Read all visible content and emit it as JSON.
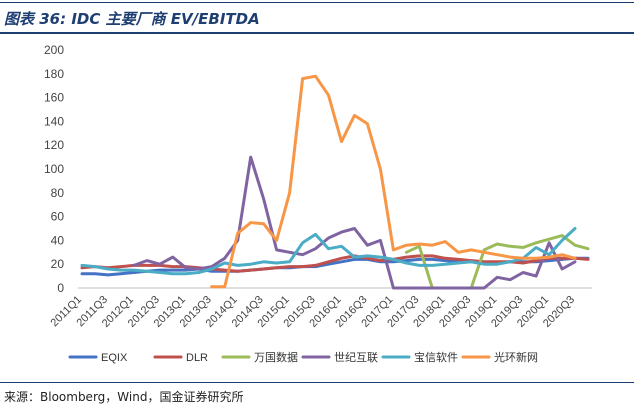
{
  "figure": {
    "title": "图表 36:  IDC 主要厂商 EV/EBITDA",
    "source": "来源：Bloomberg，Wind，国金证券研究所"
  },
  "chart_data": {
    "type": "line",
    "title": "",
    "xlabel": "",
    "ylabel": "",
    "ylim": [
      0,
      200
    ],
    "yticks": [
      0,
      20,
      40,
      60,
      80,
      100,
      120,
      140,
      160,
      180,
      200
    ],
    "grid": false,
    "legend_position": "bottom",
    "x": [
      "2011Q1",
      "2011Q2",
      "2011Q3",
      "2011Q4",
      "2012Q1",
      "2012Q2",
      "2012Q3",
      "2012Q4",
      "2013Q1",
      "2013Q2",
      "2013Q3",
      "2013Q4",
      "2014Q1",
      "2014Q2",
      "2014Q3",
      "2014Q4",
      "2015Q1",
      "2015Q2",
      "2015Q3",
      "2015Q4",
      "2016Q1",
      "2016Q2",
      "2016Q3",
      "2016Q4",
      "2017Q1",
      "2017Q2",
      "2017Q3",
      "2017Q4",
      "2018Q1",
      "2018Q2",
      "2018Q3",
      "2018Q4",
      "2019Q1",
      "2019Q2",
      "2019Q3",
      "2019Q4",
      "2020Q1",
      "2020Q2",
      "2020Q3",
      "2020Q4"
    ],
    "x_tick_labels": [
      "2011Q1",
      "2011Q3",
      "2012Q1",
      "2012Q3",
      "2013Q1",
      "2013Q3",
      "2014Q1",
      "2014Q3",
      "2015Q1",
      "2015Q3",
      "2016Q1",
      "2016Q3",
      "2017Q1",
      "2017Q3",
      "2018Q1",
      "2018Q3",
      "2019Q1",
      "2019Q3",
      "2020Q1",
      "2020Q3"
    ],
    "series": [
      {
        "name": "EQIX",
        "color": "#4472c4",
        "values": [
          12,
          12,
          11,
          12,
          13,
          14,
          15,
          15,
          15,
          16,
          14,
          14,
          14,
          15,
          16,
          17,
          17,
          18,
          18,
          20,
          22,
          24,
          24,
          22,
          22,
          23,
          24,
          24,
          23,
          22,
          22,
          21,
          21,
          22,
          22,
          22,
          23,
          24,
          25,
          25
        ]
      },
      {
        "name": "DLR",
        "color": "#c0504d",
        "values": [
          17,
          18,
          17,
          18,
          19,
          19,
          19,
          18,
          18,
          17,
          16,
          15,
          14,
          15,
          16,
          17,
          18,
          18,
          19,
          22,
          25,
          27,
          25,
          23,
          24,
          26,
          27,
          27,
          25,
          24,
          23,
          22,
          22,
          22,
          21,
          23,
          25,
          25,
          25,
          24
        ]
      },
      {
        "name": "万国数据",
        "color": "#9bbb59",
        "values": [
          null,
          null,
          null,
          null,
          null,
          null,
          null,
          null,
          null,
          null,
          null,
          null,
          null,
          null,
          null,
          null,
          null,
          null,
          null,
          null,
          null,
          null,
          null,
          null,
          null,
          30,
          35,
          0,
          0,
          0,
          0,
          32,
          37,
          35,
          34,
          38,
          41,
          44,
          36,
          33
        ]
      },
      {
        "name": "世纪互联",
        "color": "#8064a2",
        "values": [
          null,
          null,
          null,
          null,
          19,
          23,
          20,
          26,
          17,
          16,
          18,
          25,
          40,
          110,
          75,
          32,
          30,
          28,
          33,
          42,
          47,
          50,
          36,
          40,
          0,
          0,
          0,
          0,
          0,
          0,
          0,
          0,
          9,
          7,
          13,
          10,
          38,
          16,
          22,
          null
        ]
      },
      {
        "name": "宝信软件",
        "color": "#4bacc6",
        "values": [
          19,
          18,
          16,
          15,
          15,
          14,
          13,
          12,
          12,
          13,
          16,
          21,
          19,
          20,
          22,
          21,
          22,
          38,
          45,
          33,
          35,
          26,
          27,
          26,
          24,
          21,
          19,
          19,
          20,
          21,
          22,
          20,
          20,
          22,
          25,
          34,
          28,
          40,
          50,
          null
        ]
      },
      {
        "name": "光环新网",
        "color": "#f79646",
        "values": [
          null,
          null,
          null,
          null,
          null,
          null,
          null,
          null,
          null,
          null,
          1,
          1,
          46,
          55,
          54,
          40,
          80,
          176,
          178,
          162,
          123,
          145,
          138,
          100,
          32,
          36,
          37,
          36,
          39,
          30,
          32,
          30,
          28,
          26,
          25,
          25,
          26,
          28,
          25,
          null
        ]
      }
    ]
  }
}
